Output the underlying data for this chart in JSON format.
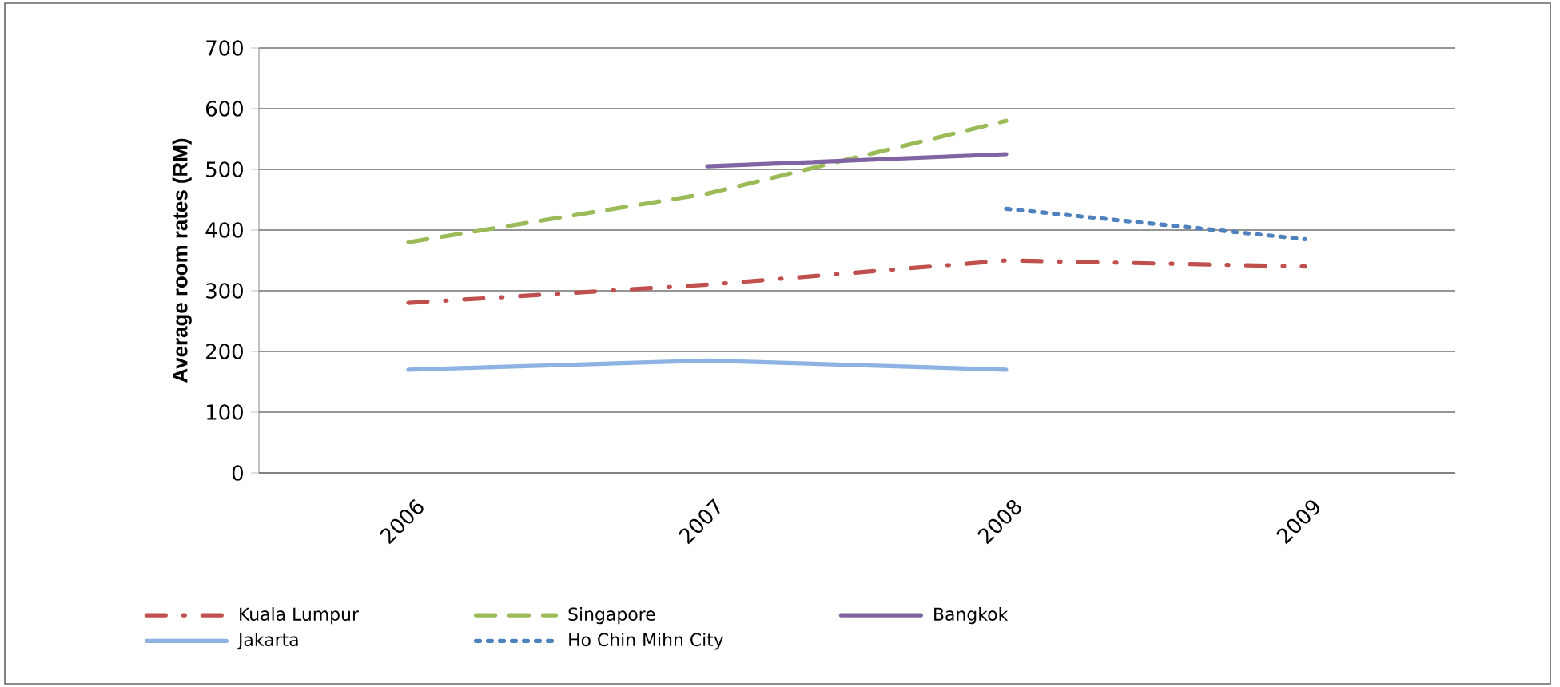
{
  "chart_data": {
    "type": "line",
    "ylabel": "Average room rates (RM)",
    "categories": [
      "2006",
      "2007",
      "2008",
      "2009"
    ],
    "series": [
      {
        "name": "Kuala Lumpur",
        "color": "#c0504d",
        "line_style": "dashdot",
        "values": [
          280,
          310,
          350,
          340
        ]
      },
      {
        "name": "Singapore",
        "color": "#9bbb59",
        "line_style": "dashed",
        "values": [
          380,
          460,
          580,
          null
        ]
      },
      {
        "name": "Bangkok",
        "color": "#8064a2",
        "line_style": "solid",
        "values": [
          null,
          505,
          525,
          null
        ]
      },
      {
        "name": "Jakarta",
        "color": "#8db3e2",
        "line_style": "solid",
        "values": [
          170,
          185,
          170,
          null
        ]
      },
      {
        "name": "Ho Chin Mihn City",
        "color": "#4f81bd",
        "line_style": "dotted",
        "values": [
          null,
          null,
          435,
          385
        ]
      }
    ],
    "ylim": [
      0,
      700
    ],
    "yticks": [
      0,
      100,
      200,
      300,
      400,
      500,
      600,
      700
    ],
    "grid": "y",
    "legend": "bottom"
  }
}
